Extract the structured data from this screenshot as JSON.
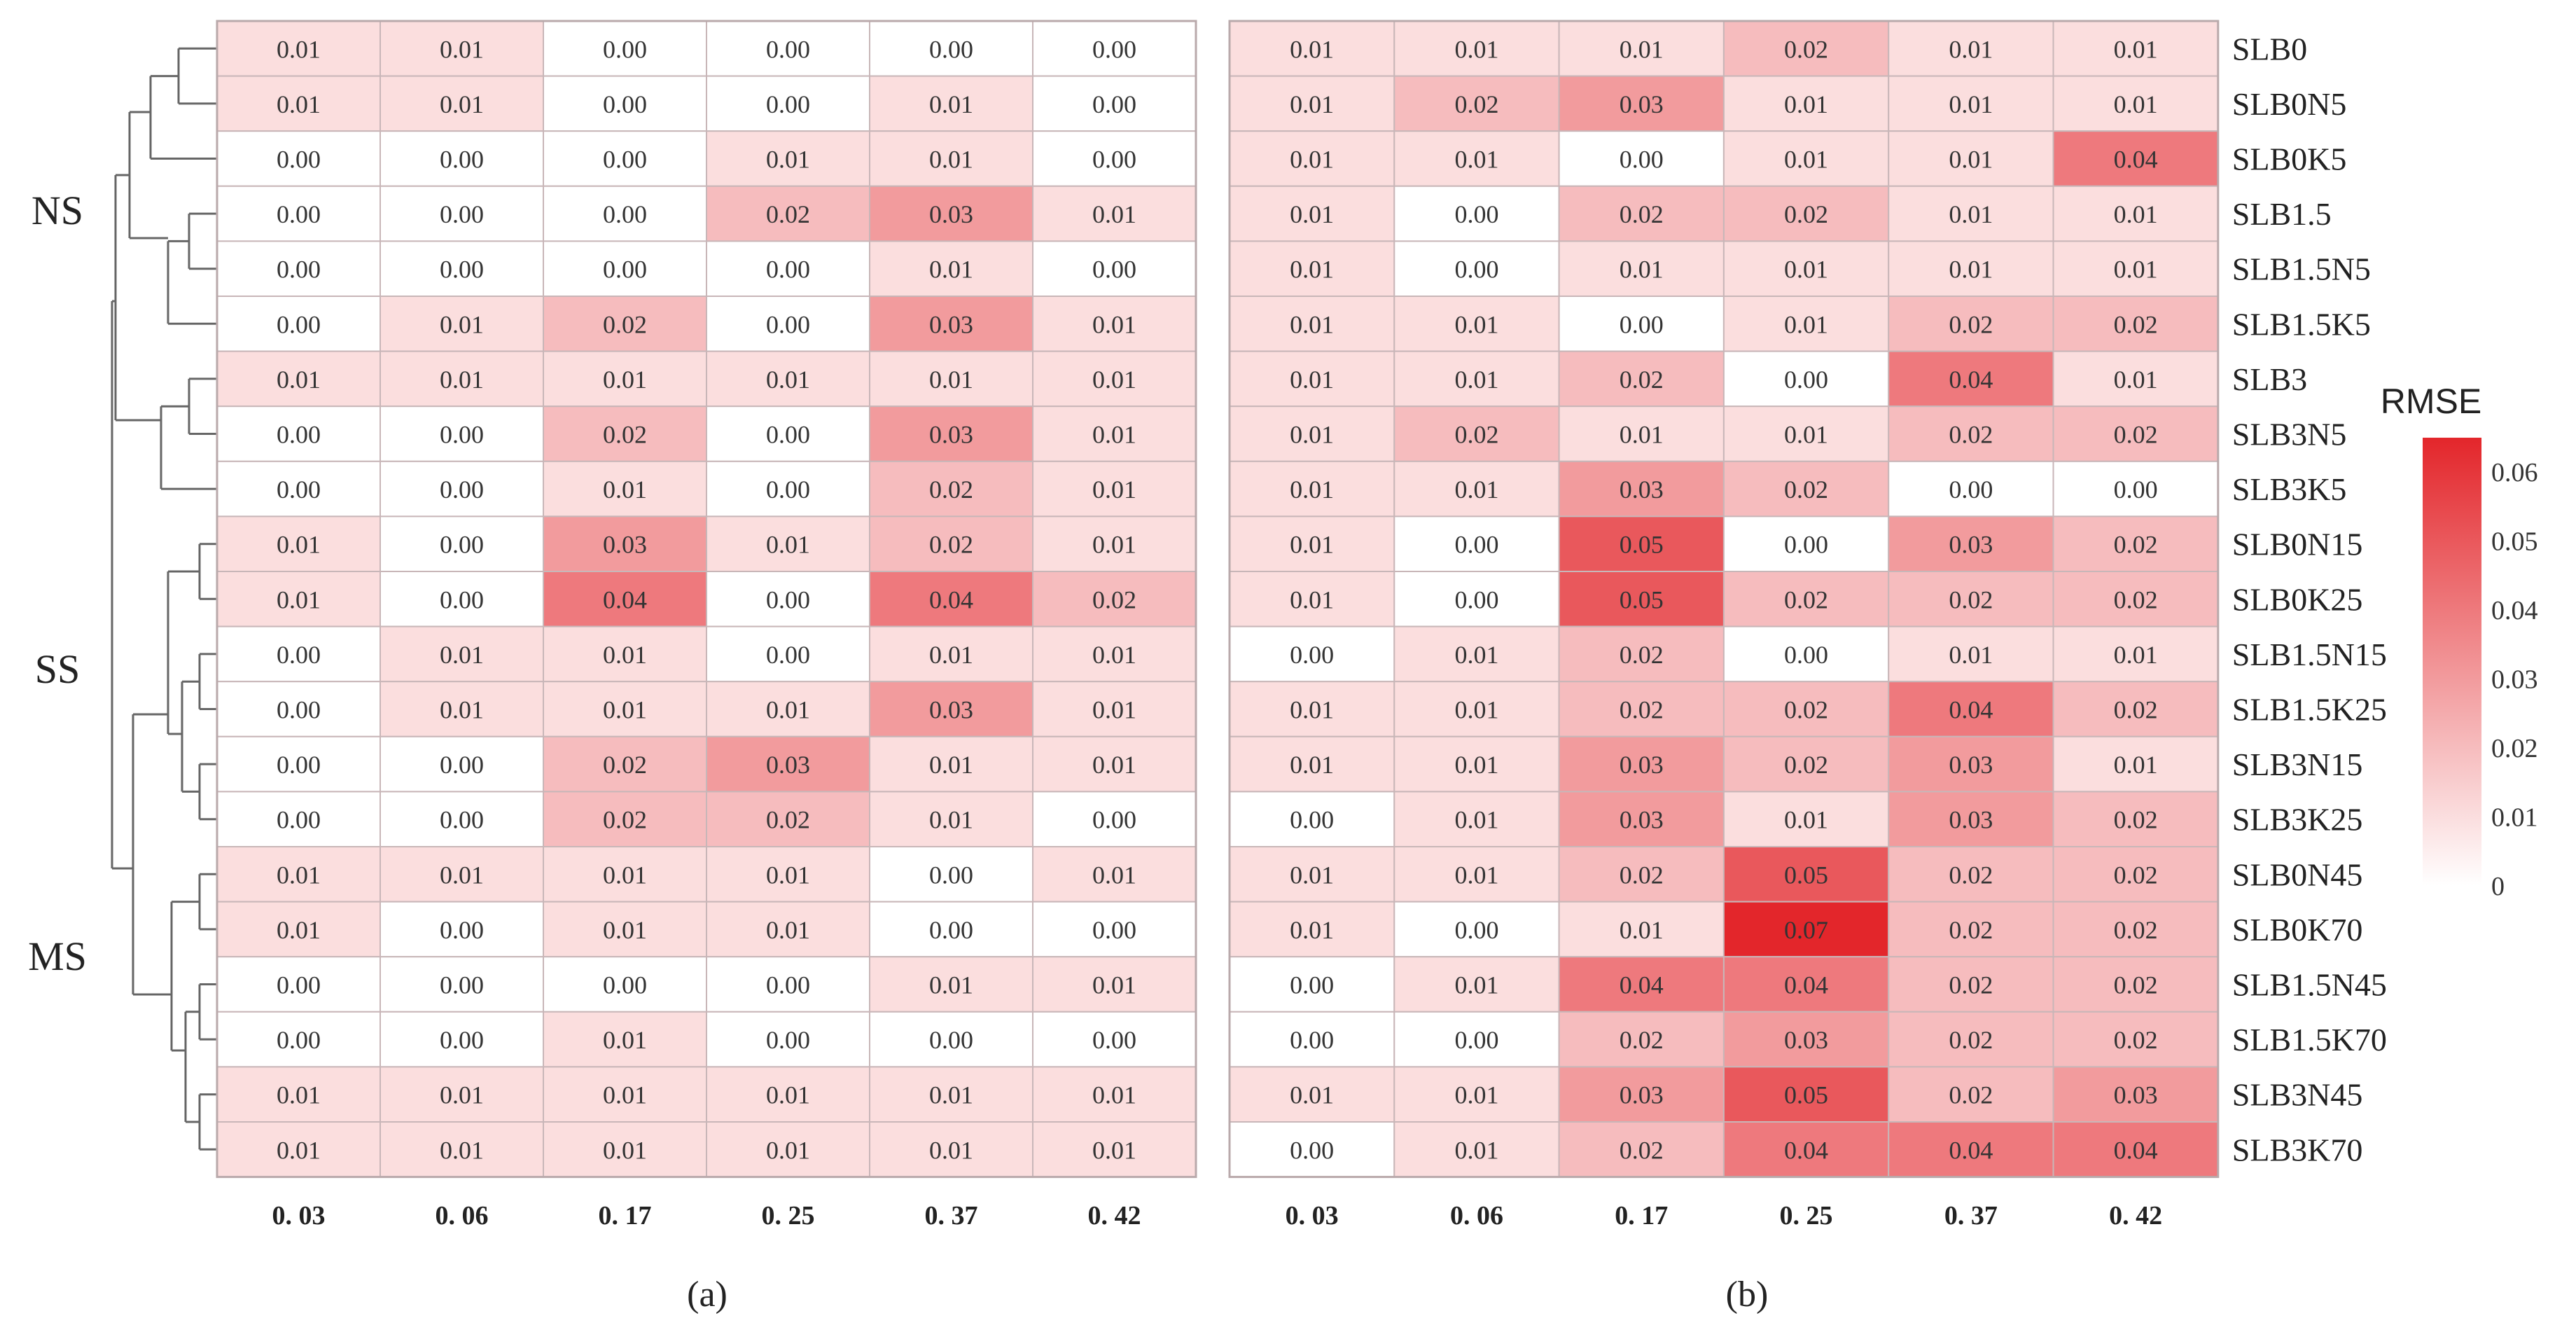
{
  "chart_data": [
    {
      "type": "heatmap",
      "panel_label": "(a)",
      "xlabel": "",
      "ylabel": "",
      "x_tick_labels": [
        "0. 03",
        "0. 06",
        "0. 17",
        "0. 25",
        "0. 37",
        "0. 42"
      ],
      "row_groups": [
        {
          "label": "NS",
          "rows": [
            0,
            8
          ]
        },
        {
          "label": "SS",
          "rows": [
            9,
            14
          ]
        },
        {
          "label": "MS",
          "rows": [
            15,
            20
          ]
        }
      ],
      "values": [
        [
          "0.01",
          "0.01",
          "0.00",
          "0.00",
          "0.00",
          "0.00"
        ],
        [
          "0.01",
          "0.01",
          "0.00",
          "0.00",
          "0.01",
          "0.00"
        ],
        [
          "0.00",
          "0.00",
          "0.00",
          "0.01",
          "0.01",
          "0.00"
        ],
        [
          "0.00",
          "0.00",
          "0.00",
          "0.02",
          "0.03",
          "0.01"
        ],
        [
          "0.00",
          "0.00",
          "0.00",
          "0.00",
          "0.01",
          "0.00"
        ],
        [
          "0.00",
          "0.01",
          "0.02",
          "0.00",
          "0.03",
          "0.01"
        ],
        [
          "0.01",
          "0.01",
          "0.01",
          "0.01",
          "0.01",
          "0.01"
        ],
        [
          "0.00",
          "0.00",
          "0.02",
          "0.00",
          "0.03",
          "0.01"
        ],
        [
          "0.00",
          "0.00",
          "0.01",
          "0.00",
          "0.02",
          "0.01"
        ],
        [
          "0.01",
          "0.00",
          "0.03",
          "0.01",
          "0.02",
          "0.01"
        ],
        [
          "0.01",
          "0.00",
          "0.04",
          "0.00",
          "0.04",
          "0.02"
        ],
        [
          "0.00",
          "0.01",
          "0.01",
          "0.00",
          "0.01",
          "0.01"
        ],
        [
          "0.00",
          "0.01",
          "0.01",
          "0.01",
          "0.03",
          "0.01"
        ],
        [
          "0.00",
          "0.00",
          "0.02",
          "0.03",
          "0.01",
          "0.01"
        ],
        [
          "0.00",
          "0.00",
          "0.02",
          "0.02",
          "0.01",
          "0.00"
        ],
        [
          "0.01",
          "0.01",
          "0.01",
          "0.01",
          "0.00",
          "0.01"
        ],
        [
          "0.01",
          "0.00",
          "0.01",
          "0.01",
          "0.00",
          "0.00"
        ],
        [
          "0.00",
          "0.00",
          "0.00",
          "0.00",
          "0.01",
          "0.01"
        ],
        [
          "0.00",
          "0.00",
          "0.01",
          "0.00",
          "0.00",
          "0.00"
        ],
        [
          "0.01",
          "0.01",
          "0.01",
          "0.01",
          "0.01",
          "0.01"
        ],
        [
          "0.01",
          "0.01",
          "0.01",
          "0.01",
          "0.01",
          "0.01"
        ]
      ]
    },
    {
      "type": "heatmap",
      "panel_label": "(b)",
      "xlabel": "",
      "ylabel": "",
      "x_tick_labels": [
        "0. 03",
        "0. 06",
        "0. 17",
        "0. 25",
        "0. 37",
        "0. 42"
      ],
      "row_labels": [
        "SLB0",
        "SLB0N5",
        "SLB0K5",
        "SLB1.5",
        "SLB1.5N5",
        "SLB1.5K5",
        "SLB3",
        "SLB3N5",
        "SLB3K5",
        "SLB0N15",
        "SLB0K25",
        "SLB1.5N15",
        "SLB1.5K25",
        "SLB3N15",
        "SLB3K25",
        "SLB0N45",
        "SLB0K70",
        "SLB1.5N45",
        "SLB1.5K70",
        "SLB3N45",
        "SLB3K70"
      ],
      "values": [
        [
          "0.01",
          "0.01",
          "0.01",
          "0.02",
          "0.01",
          "0.01"
        ],
        [
          "0.01",
          "0.02",
          "0.03",
          "0.01",
          "0.01",
          "0.01"
        ],
        [
          "0.01",
          "0.01",
          "0.00",
          "0.01",
          "0.01",
          "0.04"
        ],
        [
          "0.01",
          "0.00",
          "0.02",
          "0.02",
          "0.01",
          "0.01"
        ],
        [
          "0.01",
          "0.00",
          "0.01",
          "0.01",
          "0.01",
          "0.01"
        ],
        [
          "0.01",
          "0.01",
          "0.00",
          "0.01",
          "0.02",
          "0.02"
        ],
        [
          "0.01",
          "0.01",
          "0.02",
          "0.00",
          "0.04",
          "0.01"
        ],
        [
          "0.01",
          "0.02",
          "0.01",
          "0.01",
          "0.02",
          "0.02"
        ],
        [
          "0.01",
          "0.01",
          "0.03",
          "0.02",
          "0.00",
          "0.00"
        ],
        [
          "0.01",
          "0.00",
          "0.05",
          "0.00",
          "0.03",
          "0.02"
        ],
        [
          "0.01",
          "0.00",
          "0.05",
          "0.02",
          "0.02",
          "0.02"
        ],
        [
          "0.00",
          "0.01",
          "0.02",
          "0.00",
          "0.01",
          "0.01"
        ],
        [
          "0.01",
          "0.01",
          "0.02",
          "0.02",
          "0.04",
          "0.02"
        ],
        [
          "0.01",
          "0.01",
          "0.03",
          "0.02",
          "0.03",
          "0.01"
        ],
        [
          "0.00",
          "0.01",
          "0.03",
          "0.01",
          "0.03",
          "0.02"
        ],
        [
          "0.01",
          "0.01",
          "0.02",
          "0.05",
          "0.02",
          "0.02"
        ],
        [
          "0.01",
          "0.00",
          "0.01",
          "0.07",
          "0.02",
          "0.02"
        ],
        [
          "0.00",
          "0.01",
          "0.04",
          "0.04",
          "0.02",
          "0.02"
        ],
        [
          "0.00",
          "0.00",
          "0.02",
          "0.03",
          "0.02",
          "0.02"
        ],
        [
          "0.01",
          "0.01",
          "0.03",
          "0.05",
          "0.02",
          "0.03"
        ],
        [
          "0.00",
          "0.01",
          "0.02",
          "0.04",
          "0.04",
          "0.04"
        ]
      ]
    }
  ],
  "legend": {
    "title": "RMSE",
    "ticks": [
      "0.06",
      "0.05",
      "0.04",
      "0.03",
      "0.02",
      "0.01",
      "0"
    ],
    "min": 0,
    "max": 0.065,
    "color_low": "#ffffff",
    "color_high": "#e3262b"
  },
  "colors": {
    "grid": "#c8b6b8",
    "border": "#b9a9ab",
    "dendrogram": "#666666"
  }
}
